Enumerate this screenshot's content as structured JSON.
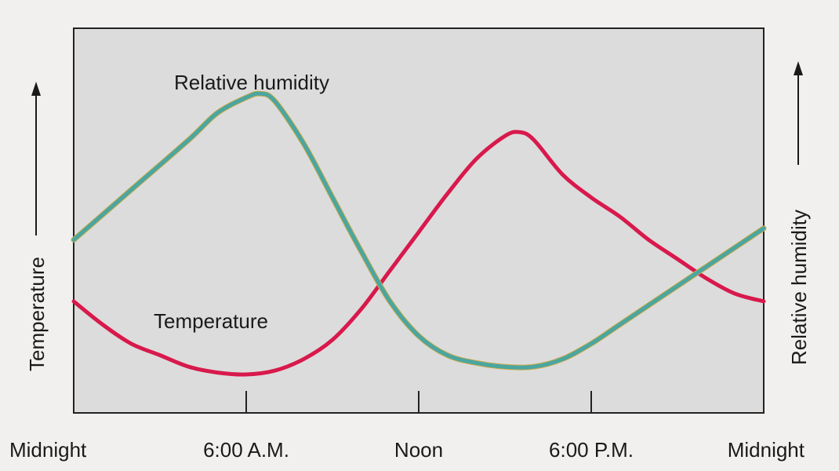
{
  "chart_data": {
    "type": "line",
    "x_tick_labels": [
      "Midnight",
      "6:00 A.M.",
      "Noon",
      "6:00 P.M.",
      "Midnight"
    ],
    "x_ticks_hours": [
      0,
      6,
      12,
      18,
      24
    ],
    "xlim": [
      0,
      24
    ],
    "ylim": [
      0,
      100
    ],
    "left_axis_label": "Temperature",
    "right_axis_label": "Relative humidity",
    "grid": false,
    "series": [
      {
        "name": "Relative humidity",
        "color": "#4aa6a0",
        "x": [
          0,
          2,
          4,
          5,
          6,
          6.5,
          7,
          8,
          9,
          10,
          11,
          12,
          13,
          14,
          15,
          16,
          17,
          18,
          19,
          20,
          21,
          22,
          23,
          24
        ],
        "y": [
          45,
          58,
          71,
          78,
          82,
          83,
          81,
          70,
          56,
          42,
          29,
          20,
          15,
          13,
          12,
          12,
          14,
          18,
          23,
          28,
          33,
          38,
          43,
          48
        ]
      },
      {
        "name": "Temperature",
        "color": "#d8194c",
        "x": [
          0,
          1,
          2,
          3,
          4,
          5,
          6,
          7,
          8,
          9,
          10,
          11,
          12,
          13,
          14,
          15,
          15.5,
          16,
          17,
          18,
          19,
          20,
          21,
          22,
          23,
          24
        ],
        "y": [
          29,
          23,
          18,
          15,
          12,
          10.5,
          10,
          11,
          14,
          19,
          27,
          37,
          47,
          57,
          66,
          72,
          73,
          71,
          62,
          56,
          51,
          45,
          40,
          35,
          31,
          29
        ]
      }
    ]
  }
}
